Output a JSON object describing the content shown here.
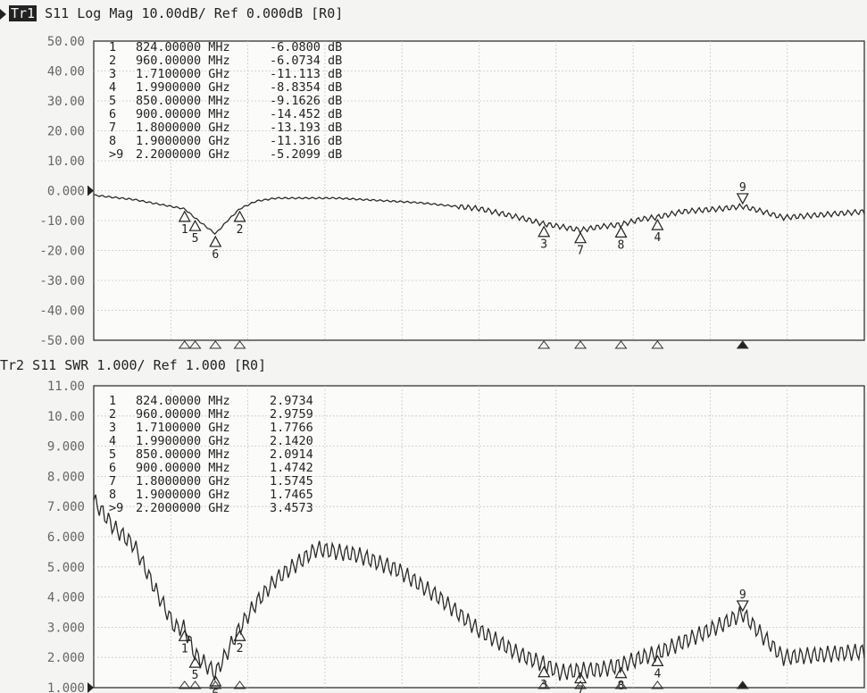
{
  "chart_data": [
    {
      "type": "line",
      "title": "Tr1 S11 Log Mag 10.00dB/ Ref 0.000dB [R0]",
      "title_parts": {
        "trace": "Tr1",
        "rest": " S11 Log Mag 10.00dB/ Ref 0.000dB [R0]"
      },
      "yticks": [
        "50.00",
        "40.00",
        "30.00",
        "20.00",
        "10.00",
        "0.000",
        "-10.00",
        "-20.00",
        "-30.00",
        "-40.00",
        "-50.00"
      ],
      "ylim": [
        -50,
        50
      ],
      "ref_value": 0,
      "xlim_mhz": [
        600,
        2500
      ],
      "grid": true,
      "series": [
        {
          "x_mhz": [
            600,
            700,
            800,
            824,
            850,
            900,
            930,
            960,
            1000,
            1050,
            1200,
            1400,
            1550,
            1650,
            1710,
            1750,
            1800,
            1850,
            1900,
            1950,
            1990,
            2050,
            2150,
            2200,
            2250,
            2300,
            2400,
            2500
          ],
          "values": [
            -1.5,
            -3,
            -5.5,
            -6.08,
            -9.16,
            -14.45,
            -10,
            -6.07,
            -3.5,
            -2.5,
            -2.5,
            -4,
            -6,
            -9,
            -11.11,
            -12,
            -13.19,
            -12,
            -11.32,
            -9.5,
            -8.84,
            -7,
            -6,
            -5.21,
            -7,
            -9,
            -8,
            -7
          ]
        }
      ],
      "markers": [
        {
          "num": "1",
          "freq": "824.00000 MHz",
          "value": "-6.0800 dB",
          "x_mhz": 824,
          "y": -6.08
        },
        {
          "num": "2",
          "freq": "960.00000 MHz",
          "value": "-6.0734 dB",
          "x_mhz": 960,
          "y": -6.0734
        },
        {
          "num": "3",
          "freq": "1.7100000 GHz",
          "value": "-11.113 dB",
          "x_mhz": 1710,
          "y": -11.113
        },
        {
          "num": "4",
          "freq": "1.9900000 GHz",
          "value": "-8.8354 dB",
          "x_mhz": 1990,
          "y": -8.8354
        },
        {
          "num": "5",
          "freq": "850.00000 MHz",
          "value": "-9.1626 dB",
          "x_mhz": 850,
          "y": -9.1626
        },
        {
          "num": "6",
          "freq": "900.00000 MHz",
          "value": "-14.452 dB",
          "x_mhz": 900,
          "y": -14.452
        },
        {
          "num": "7",
          "freq": "1.8000000 GHz",
          "value": "-13.193 dB",
          "x_mhz": 1800,
          "y": -13.193
        },
        {
          "num": "8",
          "freq": "1.9000000 GHz",
          "value": "-11.316 dB",
          "x_mhz": 1900,
          "y": -11.316
        },
        {
          "num": ">9",
          "freq": "2.2000000 GHz",
          "value": "-5.2099 dB",
          "x_mhz": 2200,
          "y": -5.2099
        }
      ]
    },
    {
      "type": "line",
      "title": "Tr2 S11 SWR 1.000/ Ref 1.000 [R0]",
      "title_parts": {
        "trace": "Tr2",
        "rest": " S11 SWR 1.000/ Ref 1.000 [R0]"
      },
      "yticks": [
        "11.00",
        "10.00",
        "9.000",
        "8.000",
        "7.000",
        "6.000",
        "5.000",
        "4.000",
        "3.000",
        "2.000",
        "1.000"
      ],
      "ylim": [
        1,
        11
      ],
      "ref_value": 1,
      "xlim_mhz": [
        600,
        2500
      ],
      "grid": true,
      "series": [
        {
          "x_mhz": [
            600,
            650,
            700,
            750,
            800,
            824,
            850,
            900,
            930,
            960,
            1000,
            1050,
            1150,
            1250,
            1350,
            1450,
            1550,
            1650,
            1710,
            1750,
            1800,
            1850,
            1900,
            1950,
            1990,
            2050,
            2150,
            2200,
            2250,
            2300,
            2400,
            2500
          ],
          "values": [
            7.2,
            6.3,
            5.7,
            4.3,
            3.0,
            2.97,
            2.09,
            1.47,
            2.2,
            2.98,
            3.8,
            4.6,
            5.6,
            5.4,
            4.9,
            4.0,
            2.9,
            2.1,
            1.78,
            1.5,
            1.57,
            1.6,
            1.75,
            2.0,
            2.14,
            2.5,
            3.1,
            3.46,
            2.7,
            2.0,
            2.1,
            2.2
          ]
        }
      ],
      "markers": [
        {
          "num": "1",
          "freq": "824.00000 MHz",
          "value": "2.9734",
          "x_mhz": 824,
          "y": 2.9734
        },
        {
          "num": "2",
          "freq": "960.00000 MHz",
          "value": "2.9759",
          "x_mhz": 960,
          "y": 2.9759
        },
        {
          "num": "3",
          "freq": "1.7100000 GHz",
          "value": "1.7766",
          "x_mhz": 1710,
          "y": 1.7766
        },
        {
          "num": "4",
          "freq": "1.9900000 GHz",
          "value": "2.1420",
          "x_mhz": 1990,
          "y": 2.142
        },
        {
          "num": "5",
          "freq": "850.00000 MHz",
          "value": "2.0914",
          "x_mhz": 850,
          "y": 2.0914
        },
        {
          "num": "6",
          "freq": "900.00000 MHz",
          "value": "1.4742",
          "x_mhz": 900,
          "y": 1.4742
        },
        {
          "num": "7",
          "freq": "1.8000000 GHz",
          "value": "1.5745",
          "x_mhz": 1800,
          "y": 1.5745
        },
        {
          "num": "8",
          "freq": "1.9000000 GHz",
          "value": "1.7465",
          "x_mhz": 1900,
          "y": 1.7465
        },
        {
          "num": ">9",
          "freq": "2.2000000 GHz",
          "value": "3.4573",
          "x_mhz": 2200,
          "y": 3.4573
        }
      ]
    }
  ]
}
